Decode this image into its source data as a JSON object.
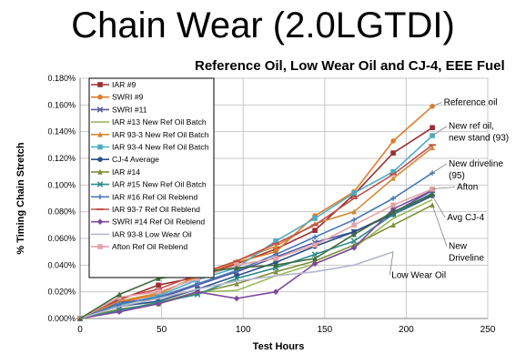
{
  "title": "Chain Wear (2.0LGTDI)",
  "subtitle": "Reference Oil, Low Wear Oil and CJ-4, EEE Fuel",
  "chart_data": {
    "type": "line",
    "xlabel": "Test Hours",
    "ylabel": "% Timing Chain Stretch",
    "xlim": [
      0,
      250
    ],
    "ylim": [
      0,
      0.18
    ],
    "x_ticks": [
      "0",
      "50",
      "100",
      "150",
      "200",
      "250"
    ],
    "y_ticks": [
      "0.000%",
      "0.020%",
      "0.040%",
      "0.060%",
      "0.080%",
      "0.100%",
      "0.120%",
      "0.140%",
      "0.160%",
      "0.180%"
    ],
    "grid": true,
    "legend_position": "top-left",
    "series": [
      {
        "name": "IAR #9",
        "color": "#9b2d30",
        "marker": "square",
        "points": [
          [
            0,
            0
          ],
          [
            24,
            0.014
          ],
          [
            48,
            0.025
          ],
          [
            72,
            0.031
          ],
          [
            96,
            0.041
          ],
          [
            120,
            0.052
          ],
          [
            144,
            0.066
          ],
          [
            168,
            0.093
          ],
          [
            192,
            0.124
          ],
          [
            216,
            0.143
          ]
        ]
      },
      {
        "name": "SWRI #9",
        "color": "#e07b2a",
        "marker": "circle",
        "points": [
          [
            0,
            0
          ],
          [
            24,
            0.012
          ],
          [
            48,
            0.018
          ],
          [
            72,
            0.032
          ],
          [
            96,
            0.042
          ],
          [
            120,
            0.05
          ],
          [
            144,
            0.077
          ],
          [
            168,
            0.095
          ],
          [
            192,
            0.133
          ],
          [
            216,
            0.159
          ]
        ]
      },
      {
        "name": "SWRI #11",
        "color": "#5a5aa0",
        "marker": "x",
        "points": [
          [
            0,
            0
          ],
          [
            24,
            0.012
          ],
          [
            48,
            0.015
          ],
          [
            72,
            0.025
          ],
          [
            96,
            0.035
          ],
          [
            120,
            0.046
          ],
          [
            144,
            0.057
          ],
          [
            168,
            0.065
          ],
          [
            192,
            0.079
          ],
          [
            216,
            0.096
          ]
        ]
      },
      {
        "name": "IAR #13 New Ref Oil Batch",
        "color": "#9bbb59",
        "marker": "none",
        "points": [
          [
            0,
            0
          ],
          [
            24,
            0.01
          ],
          [
            48,
            0.012
          ],
          [
            72,
            0.02
          ],
          [
            96,
            0.021
          ],
          [
            120,
            0.032
          ],
          [
            144,
            0.041
          ],
          [
            168,
            0.053
          ],
          [
            192,
            0.075
          ],
          [
            216,
            0.089
          ]
        ]
      },
      {
        "name": "IAR 93-3 New Ref Oil Batch",
        "color": "#d08a3a",
        "marker": "triangle",
        "points": [
          [
            0,
            0
          ],
          [
            24,
            0.013
          ],
          [
            48,
            0.019
          ],
          [
            72,
            0.031
          ],
          [
            96,
            0.043
          ],
          [
            120,
            0.054
          ],
          [
            144,
            0.071
          ],
          [
            168,
            0.08
          ],
          [
            192,
            0.105
          ],
          [
            216,
            0.128
          ]
        ]
      },
      {
        "name": "IAR 93-4 New Ref Oil Batch",
        "color": "#4bacc6",
        "marker": "square",
        "points": [
          [
            0,
            0
          ],
          [
            24,
            0.01
          ],
          [
            48,
            0.017
          ],
          [
            72,
            0.029
          ],
          [
            96,
            0.038
          ],
          [
            120,
            0.058
          ],
          [
            144,
            0.075
          ],
          [
            168,
            0.094
          ],
          [
            192,
            0.11
          ],
          [
            216,
            0.137
          ]
        ]
      },
      {
        "name": "CJ-4 Average",
        "color": "#2c4f8a",
        "marker": "circle",
        "points": [
          [
            0,
            0
          ],
          [
            24,
            0.009
          ],
          [
            48,
            0.013
          ],
          [
            72,
            0.022
          ],
          [
            96,
            0.032
          ],
          [
            120,
            0.042
          ],
          [
            144,
            0.054
          ],
          [
            168,
            0.065
          ],
          [
            192,
            0.078
          ],
          [
            216,
            0.092
          ]
        ]
      },
      {
        "name": "IAR #14",
        "color": "#7f8f3a",
        "marker": "triangle",
        "points": [
          [
            0,
            0
          ],
          [
            24,
            0.007
          ],
          [
            48,
            0.011
          ],
          [
            72,
            0.019
          ],
          [
            96,
            0.026
          ],
          [
            120,
            0.035
          ],
          [
            144,
            0.043
          ],
          [
            168,
            0.055
          ],
          [
            192,
            0.07
          ],
          [
            216,
            0.085
          ]
        ]
      },
      {
        "name": "IAR #15 New Ref Oil Batch",
        "color": "#2e8b8b",
        "marker": "x",
        "points": [
          [
            0,
            0
          ],
          [
            24,
            0.006
          ],
          [
            48,
            0.012
          ],
          [
            72,
            0.018
          ],
          [
            96,
            0.03
          ],
          [
            120,
            0.038
          ],
          [
            144,
            0.048
          ],
          [
            168,
            0.058
          ],
          [
            192,
            0.078
          ],
          [
            216,
            0.094
          ]
        ]
      },
      {
        "name": "IAR #16 Ref Oil Reblend",
        "color": "#4a7ab8",
        "marker": "plus",
        "points": [
          [
            0,
            0
          ],
          [
            24,
            0.011
          ],
          [
            48,
            0.016
          ],
          [
            72,
            0.026
          ],
          [
            96,
            0.036
          ],
          [
            120,
            0.048
          ],
          [
            144,
            0.061
          ],
          [
            168,
            0.074
          ],
          [
            192,
            0.09
          ],
          [
            216,
            0.109
          ]
        ]
      },
      {
        "name": "IAR 93-7 Ref Oil Reblend",
        "color": "#c0504d",
        "marker": "line",
        "points": [
          [
            0,
            0
          ],
          [
            24,
            0.015
          ],
          [
            48,
            0.022
          ],
          [
            72,
            0.033
          ],
          [
            96,
            0.043
          ],
          [
            120,
            0.056
          ],
          [
            144,
            0.07
          ],
          [
            168,
            0.09
          ],
          [
            192,
            0.108
          ],
          [
            216,
            0.13
          ]
        ]
      },
      {
        "name": "SWRI #14 Ref Oil Reblend",
        "color": "#7b4a9c",
        "marker": "diamond",
        "points": [
          [
            0,
            0
          ],
          [
            24,
            0.005
          ],
          [
            48,
            0.011
          ],
          [
            72,
            0.02
          ],
          [
            96,
            0.015
          ],
          [
            120,
            0.02
          ],
          [
            144,
            0.041
          ],
          [
            168,
            0.053
          ],
          [
            192,
            0.082
          ],
          [
            216,
            0.096
          ]
        ]
      },
      {
        "name": "IAR 93-8 Low Wear Oil",
        "color": "#b4b8cc",
        "marker": "none",
        "points": [
          [
            0,
            0
          ],
          [
            24,
            0.009
          ],
          [
            48,
            0.015
          ],
          [
            72,
            0.022
          ],
          [
            96,
            0.028
          ],
          [
            120,
            0.032
          ],
          [
            144,
            0.035
          ],
          [
            168,
            0.04
          ],
          [
            192,
            0.05
          ]
        ]
      },
      {
        "name": "Afton  Ref Oil Reblend",
        "color": "#e3a3a8",
        "marker": "square",
        "points": [
          [
            0,
            0
          ],
          [
            24,
            0.016
          ],
          [
            48,
            0.02
          ],
          [
            72,
            0.03
          ],
          [
            96,
            0.04
          ],
          [
            120,
            0.045
          ],
          [
            144,
            0.055
          ],
          [
            168,
            0.07
          ],
          [
            192,
            0.085
          ],
          [
            216,
            0.097
          ]
        ]
      },
      {
        "name": "",
        "color": "#3e6b3e",
        "marker": "triangle",
        "points": [
          [
            0,
            0
          ],
          [
            24,
            0.018
          ],
          [
            48,
            0.03
          ],
          [
            72,
            0.034
          ],
          [
            96,
            0.038
          ],
          [
            120,
            0.04
          ],
          [
            144,
            0.045
          ],
          [
            168,
            0.063
          ],
          [
            192,
            0.08
          ],
          [
            216,
            0.093
          ]
        ]
      }
    ],
    "annotations": [
      {
        "lines": [
          "Reference oil"
        ],
        "x": 223,
        "y": 0.16,
        "target": [
          216,
          0.159
        ]
      },
      {
        "lines": [
          "New ref oil,",
          "new stand (93)"
        ],
        "x": 226,
        "y": 0.142,
        "target": [
          216,
          0.137
        ]
      },
      {
        "lines": [
          "New driveline",
          "(95)"
        ],
        "x": 226,
        "y": 0.114,
        "target": [
          216,
          0.109
        ]
      },
      {
        "lines": [
          "Afton"
        ],
        "x": 231,
        "y": 0.0965,
        "target": [
          216,
          0.097
        ]
      },
      {
        "lines": [
          "Avg CJ-4"
        ],
        "x": 225,
        "y": 0.0735,
        "target": [
          216,
          0.092
        ]
      },
      {
        "lines": [
          "New",
          "Driveline"
        ],
        "x": 226,
        "y": 0.052,
        "target": [
          216,
          0.085
        ]
      },
      {
        "lines": [
          "Low Wear Oil"
        ],
        "x": 191,
        "y": 0.0305,
        "target": [
          192,
          0.05
        ]
      }
    ]
  }
}
